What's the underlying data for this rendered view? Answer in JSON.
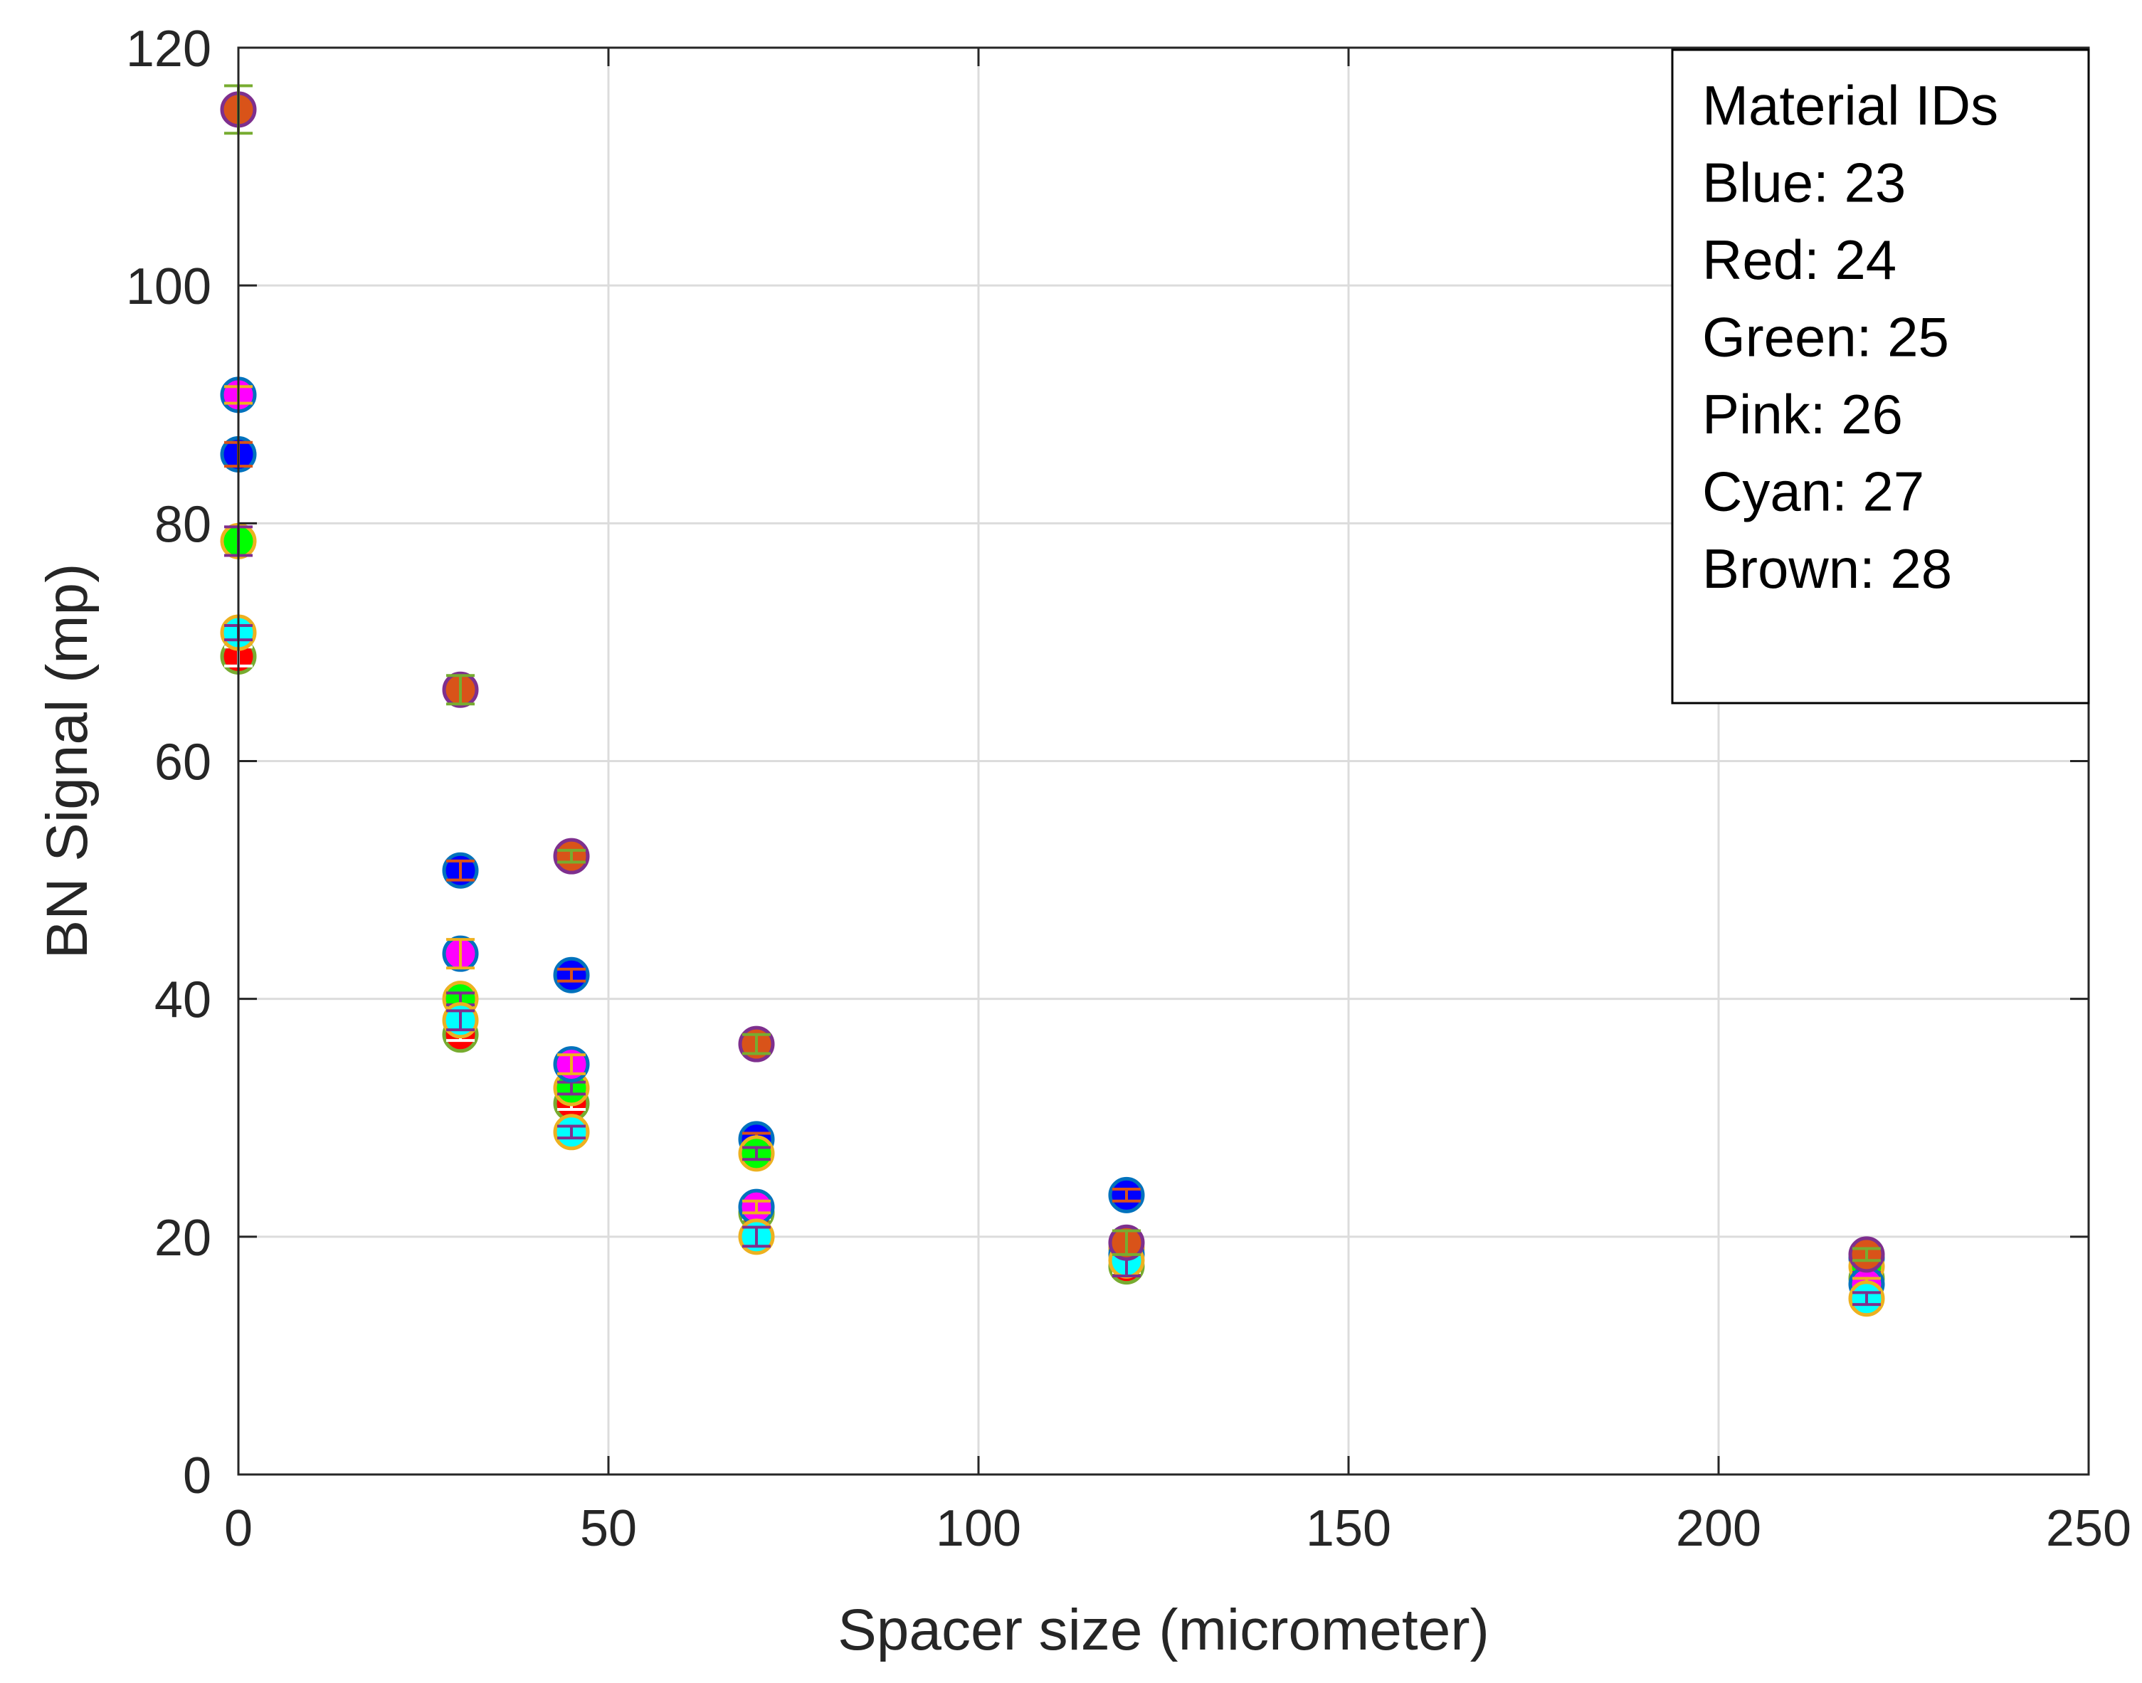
{
  "chart_data": {
    "type": "scatter",
    "title": "",
    "xlabel": "Spacer size (micrometer)",
    "ylabel": "BN Signal (mp)",
    "xlim": [
      0,
      250
    ],
    "ylim": [
      0,
      120
    ],
    "xticks": [
      "0",
      "50",
      "100",
      "150",
      "200",
      "250"
    ],
    "yticks": [
      "0",
      "20",
      "40",
      "60",
      "80",
      "100",
      "120"
    ],
    "grid": true,
    "legend_box": {
      "position": "top-right",
      "lines": [
        "Material IDs",
        "Blue: 23",
        "Red: 24",
        "Green: 25",
        "Pink: 26",
        "Cyan: 27",
        "Brown: 28"
      ]
    },
    "series": [
      {
        "name": "Blue: 23",
        "color": "#0000ff",
        "edge": "#0072bd",
        "bar": "#d95319",
        "points": [
          {
            "x": 0,
            "y": 85.8,
            "e": 1.0
          },
          {
            "x": 30,
            "y": 50.8,
            "e": 0.8
          },
          {
            "x": 45,
            "y": 42.0,
            "e": 0.5
          },
          {
            "x": 70,
            "y": 28.2,
            "e": 0.5
          },
          {
            "x": 120,
            "y": 23.5,
            "e": 0.5
          },
          {
            "x": 220,
            "y": 18.2,
            "e": 0.5
          }
        ]
      },
      {
        "name": "Red: 24",
        "color": "#ff0000",
        "edge": "#77ac30",
        "bar": "#ffffff",
        "points": [
          {
            "x": 0,
            "y": 68.8,
            "e": 0.8
          },
          {
            "x": 30,
            "y": 37.0,
            "e": 0.5
          },
          {
            "x": 45,
            "y": 31.2,
            "e": 0.5
          },
          {
            "x": 70,
            "y": 22.0,
            "e": 0.5
          },
          {
            "x": 120,
            "y": 17.5,
            "e": 0.5
          },
          {
            "x": 220,
            "y": 16.5,
            "e": 0.5
          }
        ]
      },
      {
        "name": "Green: 25",
        "color": "#00ff00",
        "edge": "#edb120",
        "bar": "#7e2f8e",
        "points": [
          {
            "x": 0,
            "y": 78.5,
            "e": 1.2
          },
          {
            "x": 30,
            "y": 40.0,
            "e": 0.5
          },
          {
            "x": 45,
            "y": 32.5,
            "e": 0.5
          },
          {
            "x": 70,
            "y": 27.0,
            "e": 0.5
          },
          {
            "x": 120,
            "y": 19.0,
            "e": 0.5
          },
          {
            "x": 220,
            "y": 17.5,
            "e": 0.5
          }
        ]
      },
      {
        "name": "Pink: 26",
        "color": "#ff00ff",
        "edge": "#0072bd",
        "bar": "#edb120",
        "points": [
          {
            "x": 0,
            "y": 90.8,
            "e": 0.7
          },
          {
            "x": 30,
            "y": 43.8,
            "e": 1.2
          },
          {
            "x": 45,
            "y": 34.5,
            "e": 0.8
          },
          {
            "x": 70,
            "y": 22.5,
            "e": 0.5
          },
          {
            "x": 120,
            "y": 18.5,
            "e": 0.5
          },
          {
            "x": 220,
            "y": 16.0,
            "e": 0.5
          }
        ]
      },
      {
        "name": "Cyan: 27",
        "color": "#00ffff",
        "edge": "#edb120",
        "bar": "#7e2f8e",
        "points": [
          {
            "x": 0,
            "y": 70.8,
            "e": 0.6
          },
          {
            "x": 30,
            "y": 38.2,
            "e": 0.8
          },
          {
            "x": 45,
            "y": 28.8,
            "e": 0.5
          },
          {
            "x": 70,
            "y": 20.0,
            "e": 0.8
          },
          {
            "x": 120,
            "y": 18.0,
            "e": 1.3
          },
          {
            "x": 220,
            "y": 14.8,
            "e": 0.5
          }
        ]
      },
      {
        "name": "Brown: 28",
        "color": "#d95319",
        "edge": "#7e2f8e",
        "bar": "#77ac30",
        "points": [
          {
            "x": 0,
            "y": 114.8,
            "e": 2.0
          },
          {
            "x": 30,
            "y": 66.0,
            "e": 1.2
          },
          {
            "x": 45,
            "y": 52.0,
            "e": 0.5
          },
          {
            "x": 70,
            "y": 36.2,
            "e": 0.8
          },
          {
            "x": 120,
            "y": 19.5,
            "e": 1.0
          },
          {
            "x": 220,
            "y": 18.5,
            "e": 0.5
          }
        ]
      }
    ]
  }
}
